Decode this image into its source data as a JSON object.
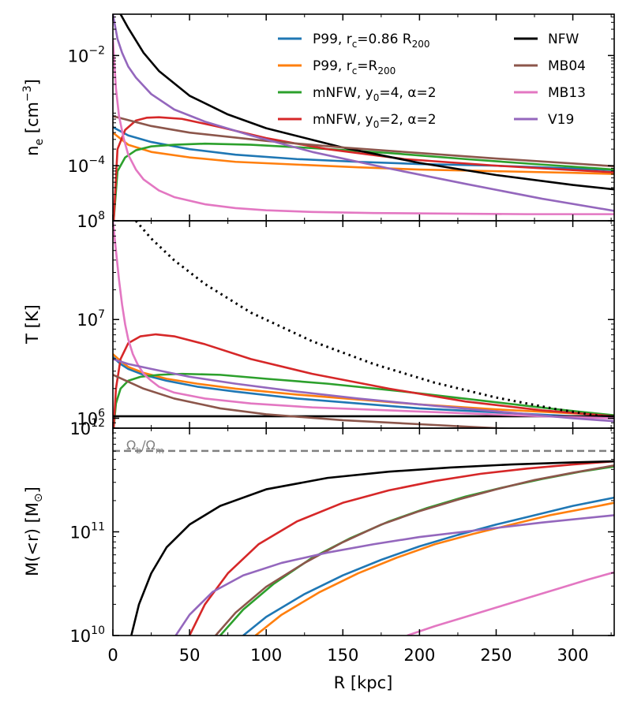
{
  "chart_data": {
    "type": "line",
    "figure": "three stacked panels sharing x axis",
    "xlabel": "R [kpc]",
    "xlim": [
      0,
      327
    ],
    "xticks": [
      0,
      50,
      100,
      150,
      200,
      250,
      300
    ],
    "xtick_labels": [
      "0",
      "50",
      "100",
      "150",
      "200",
      "250",
      "300"
    ],
    "colors": {
      "P99_086": "#1f77b4",
      "P99_1": "#ff7f0e",
      "mNFW_4": "#2ca02c",
      "mNFW_2": "#d62728",
      "NFW": "#000000",
      "MB04": "#8c564b",
      "MB13": "#e377c2",
      "V19": "#9467bd",
      "baryon_fraction": "#808080"
    },
    "legend": {
      "placement": "top",
      "entries": [
        {
          "key": "P99_086",
          "label_main": "P99, r",
          "label_sub": "c",
          "label_rest": "=0.86 R",
          "label_sub2": "200"
        },
        {
          "key": "P99_1",
          "label_main": "P99, r",
          "label_sub": "c",
          "label_rest": "=R",
          "label_sub2": "200"
        },
        {
          "key": "mNFW_4",
          "label_main": "mNFW, y",
          "label_sub": "0",
          "label_rest": "=4, α=2",
          "label_sub2": ""
        },
        {
          "key": "mNFW_2",
          "label_main": "mNFW, y",
          "label_sub": "0",
          "label_rest": "=2, α=2",
          "label_sub2": ""
        },
        {
          "key": "NFW",
          "label_main": "NFW",
          "label_sub": "",
          "label_rest": "",
          "label_sub2": ""
        },
        {
          "key": "MB04",
          "label_main": "MB04",
          "label_sub": "",
          "label_rest": "",
          "label_sub2": ""
        },
        {
          "key": "MB13",
          "label_main": "MB13",
          "label_sub": "",
          "label_rest": "",
          "label_sub2": ""
        },
        {
          "key": "V19",
          "label_main": "V19",
          "label_sub": "",
          "label_rest": "",
          "label_sub2": ""
        }
      ]
    },
    "panels": [
      {
        "id": "ne",
        "ylabel": "n_e [cm^-3]",
        "ylabel_main": "n",
        "ylabel_sub": "e",
        "ylabel_unit": " [cm",
        "ylabel_sup": "−3",
        "ylabel_end": "]",
        "yscale": "log",
        "ylim_log10": [
          -5.0,
          -1.25
        ],
        "yticks_log10": [
          -4,
          -2
        ],
        "ytick_labels": [
          {
            "base": "10",
            "exp": "−4"
          },
          {
            "base": "10",
            "exp": "−2"
          }
        ],
        "series": [
          {
            "key": "P99_086",
            "x": [
              0,
              10,
              25,
              50,
              80,
              120,
              160,
              200,
              250,
              300,
              327
            ],
            "y": [
              -3.3,
              -3.45,
              -3.57,
              -3.7,
              -3.8,
              -3.88,
              -3.93,
              -3.97,
              -4.0,
              -4.05,
              -4.08
            ]
          },
          {
            "key": "P99_1",
            "x": [
              0,
              10,
              25,
              50,
              80,
              120,
              160,
              200,
              250,
              300,
              327
            ],
            "y": [
              -3.4,
              -3.62,
              -3.75,
              -3.85,
              -3.93,
              -3.98,
              -4.03,
              -4.07,
              -4.1,
              -4.13,
              -4.15
            ]
          },
          {
            "key": "mNFW_4",
            "x": [
              0.5,
              3,
              8,
              15,
              25,
              40,
              60,
              90,
              130,
              180,
              230,
              280,
              327
            ],
            "y": [
              -5.0,
              -4.1,
              -3.85,
              -3.72,
              -3.65,
              -3.62,
              -3.6,
              -3.62,
              -3.68,
              -3.77,
              -3.88,
              -3.98,
              -4.07
            ]
          },
          {
            "key": "mNFW_2",
            "x": [
              0.5,
              3,
              8,
              15,
              22,
              30,
              45,
              70,
              100,
              140,
              190,
              250,
              300,
              327
            ],
            "y": [
              -5.0,
              -3.7,
              -3.35,
              -3.18,
              -3.13,
              -3.12,
              -3.15,
              -3.3,
              -3.5,
              -3.7,
              -3.88,
              -4.0,
              -4.08,
              -4.12
            ]
          },
          {
            "key": "NFW",
            "x": [
              5,
              10,
              20,
              30,
              50,
              75,
              100,
              150,
              200,
              250,
              300,
              327
            ],
            "y": [
              -1.25,
              -1.5,
              -1.95,
              -2.28,
              -2.73,
              -3.07,
              -3.32,
              -3.67,
              -3.95,
              -4.17,
              -4.35,
              -4.43
            ]
          },
          {
            "key": "MB04",
            "x": [
              0,
              25,
              50,
              100,
              150,
              200,
              250,
              300,
              327
            ],
            "y": [
              -3.1,
              -3.28,
              -3.4,
              -3.55,
              -3.67,
              -3.77,
              -3.87,
              -3.96,
              -4.01
            ]
          },
          {
            "key": "MB13",
            "x": [
              0,
              2,
              4,
              7,
              10,
              15,
              20,
              30,
              40,
              60,
              80,
              100,
              130,
              170,
              220,
              270,
              327
            ],
            "y": [
              -1.7,
              -2.6,
              -3.1,
              -3.5,
              -3.8,
              -4.07,
              -4.25,
              -4.45,
              -4.57,
              -4.7,
              -4.77,
              -4.81,
              -4.84,
              -4.86,
              -4.87,
              -4.88,
              -4.88
            ]
          },
          {
            "key": "V19",
            "x": [
              0,
              3,
              6,
              10,
              15,
              25,
              40,
              60,
              90,
              130,
              180,
              230,
              280,
              327
            ],
            "y": [
              -1.25,
              -1.7,
              -1.95,
              -2.2,
              -2.4,
              -2.7,
              -2.98,
              -3.2,
              -3.45,
              -3.75,
              -4.05,
              -4.33,
              -4.6,
              -4.82
            ]
          }
        ]
      },
      {
        "id": "T",
        "ylabel": "T [K]",
        "yscale": "log",
        "ylim_log10": [
          5.9,
          8.0
        ],
        "yticks_log10": [
          6,
          7,
          8
        ],
        "ytick_labels": [
          {
            "base": "10",
            "exp": "6"
          },
          {
            "base": "10",
            "exp": "7"
          },
          {
            "base": "10",
            "exp": "8"
          }
        ],
        "series": [
          {
            "key": "P99_086",
            "x": [
              0,
              5,
              10,
              20,
              35,
              55,
              80,
              120,
              160,
              200,
              250,
              300,
              327
            ],
            "y": [
              6.62,
              6.55,
              6.5,
              6.44,
              6.38,
              6.32,
              6.27,
              6.2,
              6.15,
              6.1,
              6.06,
              6.02,
              6.0
            ]
          },
          {
            "key": "P99_1",
            "x": [
              0,
              5,
              10,
              20,
              35,
              55,
              80,
              120,
              160,
              200,
              250,
              300,
              327
            ],
            "y": [
              6.65,
              6.58,
              6.52,
              6.46,
              6.4,
              6.35,
              6.3,
              6.24,
              6.19,
              6.14,
              6.09,
              6.05,
              6.03
            ]
          },
          {
            "key": "mNFW_4",
            "x": [
              0.5,
              2,
              5,
              10,
              18,
              30,
              45,
              70,
              100,
              140,
              190,
              240,
              290,
              327
            ],
            "y": [
              5.9,
              6.15,
              6.3,
              6.38,
              6.42,
              6.44,
              6.45,
              6.44,
              6.4,
              6.35,
              6.27,
              6.18,
              6.09,
              6.03
            ]
          },
          {
            "key": "mNFW_2",
            "x": [
              0.5,
              2,
              5,
              10,
              18,
              28,
              40,
              60,
              90,
              130,
              180,
              230,
              280,
              327
            ],
            "y": [
              5.9,
              6.3,
              6.6,
              6.76,
              6.83,
              6.85,
              6.83,
              6.75,
              6.6,
              6.45,
              6.3,
              6.17,
              6.08,
              6.02
            ]
          },
          {
            "key": "NFW",
            "x": [
              0,
              327
            ],
            "y": [
              6.02,
              6.02
            ]
          },
          {
            "key": "NFW_virial",
            "style": "dotted",
            "x": [
              15,
              25,
              40,
              60,
              90,
              130,
              170,
              210,
              250,
              290,
              327
            ],
            "y": [
              8.0,
              7.82,
              7.6,
              7.36,
              7.07,
              6.78,
              6.55,
              6.36,
              6.21,
              6.09,
              6.0
            ]
          },
          {
            "key": "MB04",
            "x": [
              0,
              20,
              40,
              70,
              100,
              150,
              200,
              250,
              300,
              327
            ],
            "y": [
              6.44,
              6.3,
              6.2,
              6.1,
              6.04,
              5.98,
              5.94,
              5.9,
              5.86,
              5.84
            ]
          },
          {
            "key": "MB13",
            "x": [
              0,
              2,
              4,
              6,
              8,
              10,
              13,
              16,
              20,
              25,
              30,
              40,
              60,
              90,
              130,
              180,
              230,
              280,
              327
            ],
            "y": [
              8.0,
              7.7,
              7.4,
              7.15,
              6.95,
              6.8,
              6.65,
              6.55,
              6.45,
              6.38,
              6.32,
              6.26,
              6.2,
              6.15,
              6.11,
              6.08,
              6.05,
              6.02,
              6.0
            ]
          },
          {
            "key": "V19",
            "x": [
              0,
              10,
              25,
              50,
              80,
              120,
              160,
              200,
              250,
              300,
              327
            ],
            "y": [
              6.6,
              6.55,
              6.5,
              6.42,
              6.35,
              6.27,
              6.2,
              6.14,
              6.07,
              6.0,
              5.97
            ]
          }
        ]
      },
      {
        "id": "M",
        "ylabel": "M(<r) [M_sun]",
        "ylabel_main": "M(<r) [M",
        "ylabel_sub": "⊙",
        "ylabel_end": "]",
        "yscale": "log",
        "ylim_log10": [
          10.0,
          12.0
        ],
        "yticks_log10": [
          10,
          11,
          12
        ],
        "ytick_labels": [
          {
            "base": "10",
            "exp": "10"
          },
          {
            "base": "10",
            "exp": "11"
          },
          {
            "base": "10",
            "exp": "12"
          }
        ],
        "hline": {
          "key": "baryon_fraction",
          "y_log10": 11.78,
          "label": "Ωb/Ωm",
          "label_main": "Ω",
          "label_sub": "b",
          "label_slash": "/Ω",
          "label_sub2": "m"
        },
        "series": [
          {
            "key": "P99_086",
            "x": [
              85,
              100,
              125,
              150,
              175,
              200,
              225,
              250,
              275,
              300,
              327
            ],
            "y": [
              10.0,
              10.18,
              10.4,
              10.58,
              10.73,
              10.86,
              10.97,
              11.07,
              11.16,
              11.25,
              11.33
            ]
          },
          {
            "key": "P99_1",
            "x": [
              93,
              110,
              135,
              160,
              185,
              210,
              235,
              260,
              285,
              310,
              327
            ],
            "y": [
              10.0,
              10.2,
              10.42,
              10.6,
              10.75,
              10.88,
              10.98,
              11.07,
              11.16,
              11.23,
              11.28
            ]
          },
          {
            "key": "mNFW_4",
            "x": [
              70,
              85,
              105,
              130,
              155,
              180,
              205,
              230,
              255,
              280,
              305,
              327
            ],
            "y": [
              10.0,
              10.25,
              10.5,
              10.75,
              10.94,
              11.1,
              11.23,
              11.34,
              11.43,
              11.51,
              11.58,
              11.63
            ]
          },
          {
            "key": "mNFW_2",
            "x": [
              50,
              60,
              75,
              95,
              120,
              150,
              180,
              210,
              240,
              270,
              300,
              327
            ],
            "y": [
              10.0,
              10.3,
              10.6,
              10.88,
              11.1,
              11.28,
              11.4,
              11.49,
              11.56,
              11.61,
              11.65,
              11.68
            ]
          },
          {
            "key": "NFW",
            "x": [
              12,
              17,
              25,
              35,
              50,
              70,
              100,
              140,
              180,
              220,
              260,
              300,
              327
            ],
            "y": [
              10.0,
              10.3,
              10.6,
              10.85,
              11.07,
              11.25,
              11.41,
              11.52,
              11.58,
              11.62,
              11.65,
              11.67,
              11.68
            ]
          },
          {
            "key": "MB04",
            "x": [
              67,
              80,
              100,
              125,
              150,
              175,
              200,
              225,
              250,
              275,
              300,
              327
            ],
            "y": [
              10.0,
              10.22,
              10.47,
              10.7,
              10.9,
              11.07,
              11.2,
              11.31,
              11.41,
              11.5,
              11.57,
              11.64
            ]
          },
          {
            "key": "V19",
            "x": [
              41,
              50,
              65,
              85,
              110,
              140,
              170,
              200,
              240,
              280,
              327
            ],
            "y": [
              10.0,
              10.2,
              10.42,
              10.58,
              10.7,
              10.8,
              10.88,
              10.95,
              11.02,
              11.09,
              11.16
            ]
          },
          {
            "key": "MB13",
            "x": [
              192,
              210,
              230,
              250,
              270,
              290,
              310,
              327
            ],
            "y": [
              10.0,
              10.09,
              10.18,
              10.27,
              10.36,
              10.45,
              10.54,
              10.61
            ]
          }
        ]
      }
    ]
  }
}
